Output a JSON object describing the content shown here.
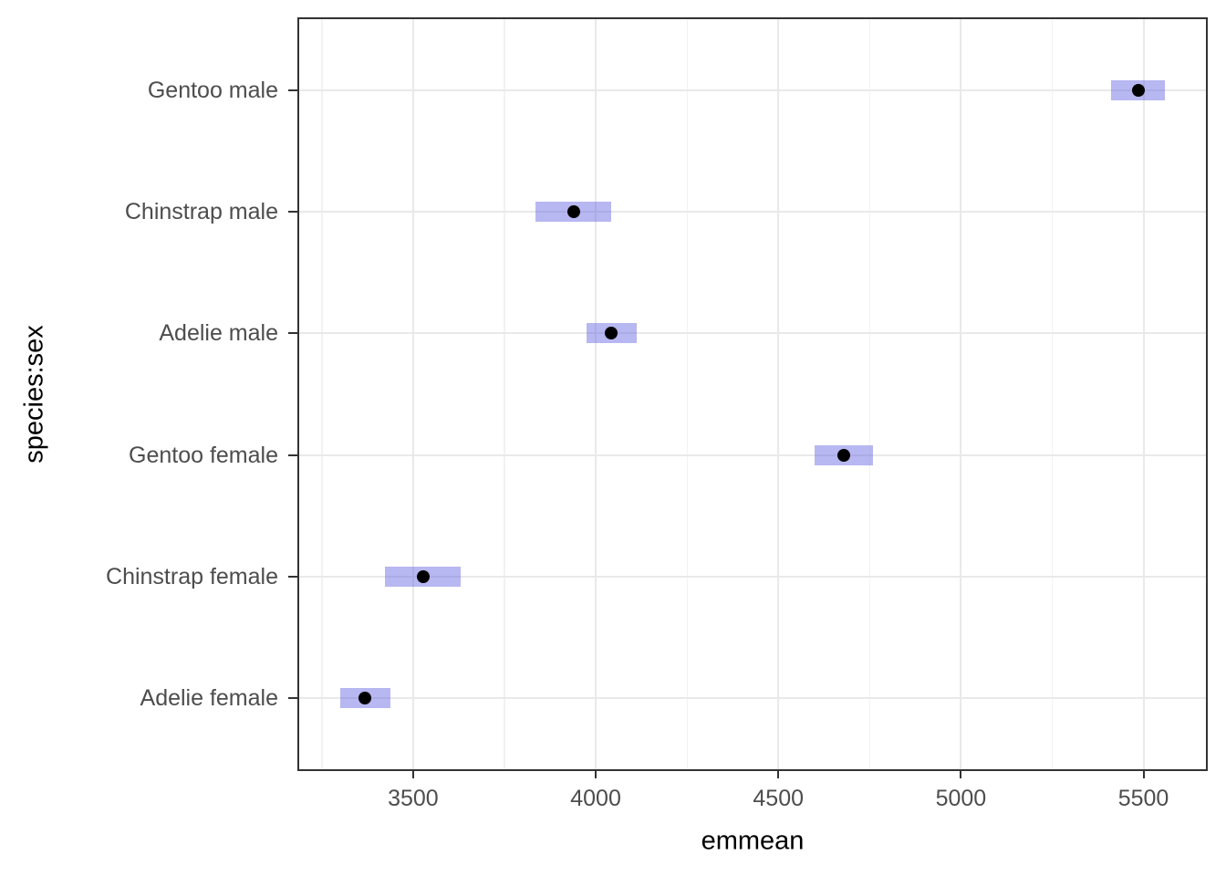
{
  "chart_data": {
    "type": "scatter",
    "subtype": "pointrange-ci",
    "orientation": "horizontal",
    "title": "",
    "xlabel": "emmean",
    "ylabel": "species:sex",
    "grid": true,
    "legend_position": "none",
    "x_axis": {
      "tick_values": [
        3500,
        4000,
        4500,
        5000,
        5500
      ],
      "tick_labels": [
        "3500",
        "4000",
        "4500",
        "5000",
        "5500"
      ],
      "minor_tick_values": [
        3250,
        3750,
        4250,
        4750,
        5250
      ],
      "range": [
        3183,
        5676
      ]
    },
    "y_axis": {
      "categories_bottom_to_top": [
        "Adelie female",
        "Chinstrap female",
        "Gentoo female",
        "Adelie male",
        "Chinstrap male",
        "Gentoo male"
      ]
    },
    "points": [
      {
        "category": "Gentoo male",
        "emmean": 5485,
        "lower_ci": 5411,
        "upper_ci": 5558
      },
      {
        "category": "Chinstrap male",
        "emmean": 3939,
        "lower_ci": 3836,
        "upper_ci": 4042
      },
      {
        "category": "Adelie male",
        "emmean": 4043,
        "lower_ci": 3975,
        "upper_ci": 4112
      },
      {
        "category": "Gentoo female",
        "emmean": 4680,
        "lower_ci": 4600,
        "upper_ci": 4759
      },
      {
        "category": "Chinstrap female",
        "emmean": 3527,
        "lower_ci": 3424,
        "upper_ci": 3630
      },
      {
        "category": "Adelie female",
        "emmean": 3369,
        "lower_ci": 3300,
        "upper_ci": 3438
      }
    ],
    "colors": {
      "ci_band": "rgba(102,102,226,0.47)",
      "point": "#000000",
      "grid_major": "#e9e9e9",
      "grid_minor": "#f2f2f2",
      "panel_border": "#333333",
      "axis_text": "#4d4d4d",
      "axis_title": "#000000",
      "background": "#ffffff"
    }
  }
}
